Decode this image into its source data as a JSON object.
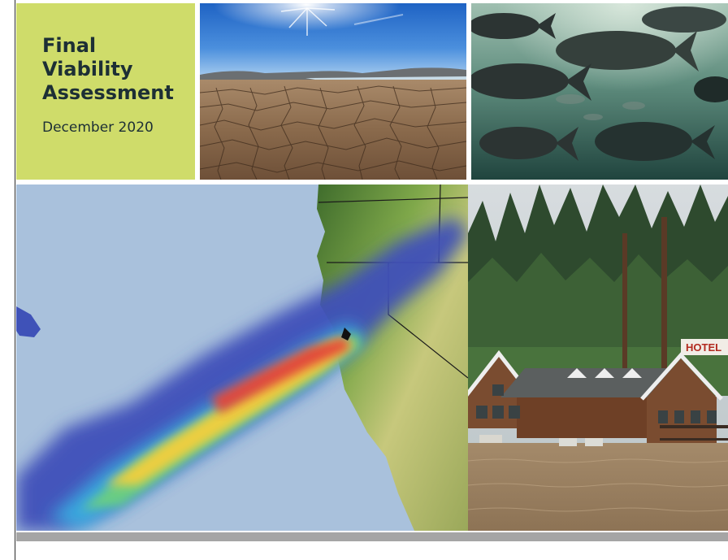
{
  "cover": {
    "title_lines": [
      "Final",
      "Viability",
      "Assessment"
    ],
    "date": "December 2020",
    "hotel_sign": "HOTEL"
  },
  "colors": {
    "title_box": "#cfdc6a",
    "title_text": "#1d2f35",
    "map_ocean": "#a9c1dc",
    "bottom_band": "#a5a5a5"
  },
  "images": [
    "cracked-dry-lakebed-photo",
    "salmon-underwater-photo",
    "atmospheric-river-map",
    "flooded-hotel-photo"
  ]
}
